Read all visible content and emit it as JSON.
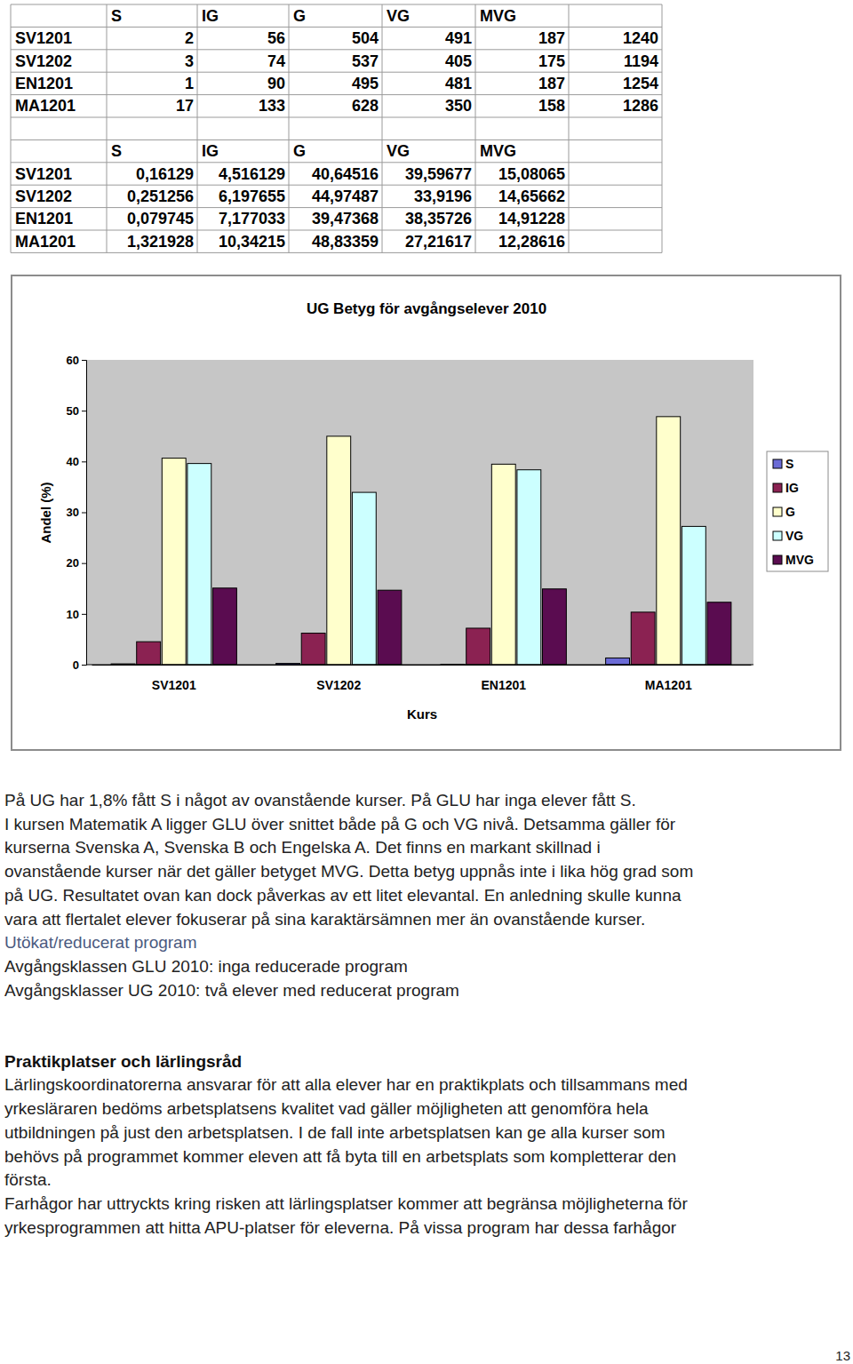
{
  "tables": [
    {
      "header": [
        "S",
        "IG",
        "G",
        "VG",
        "MVG"
      ],
      "rows": [
        {
          "label": "SV1201",
          "cells": [
            2,
            56,
            504,
            491,
            187,
            1240
          ]
        },
        {
          "label": "SV1202",
          "cells": [
            3,
            74,
            537,
            405,
            175,
            1194
          ]
        },
        {
          "label": "EN1201",
          "cells": [
            1,
            90,
            495,
            481,
            187,
            1254
          ]
        },
        {
          "label": "MA1201",
          "cells": [
            17,
            133,
            628,
            350,
            158,
            1286
          ]
        }
      ]
    },
    {
      "header": [
        "S",
        "IG",
        "G",
        "VG",
        "MVG"
      ],
      "rows": [
        {
          "label": "SV1201",
          "cells": [
            "0,16129",
            "4,516129",
            "40,64516",
            "39,59677",
            "15,08065"
          ]
        },
        {
          "label": "SV1202",
          "cells": [
            "0,251256",
            "6,197655",
            "44,97487",
            "33,9196",
            "14,65662"
          ]
        },
        {
          "label": "EN1201",
          "cells": [
            "0,079745",
            "7,177033",
            "39,47368",
            "38,35726",
            "14,91228"
          ]
        },
        {
          "label": "MA1201",
          "cells": [
            "1,321928",
            "10,34215",
            "48,83359",
            "27,21617",
            "12,28616"
          ]
        }
      ]
    }
  ],
  "chart_data": {
    "type": "bar",
    "title": "UG Betyg för avgångselever 2010",
    "x_label": "Kurs",
    "y_label": "Andel (%)",
    "categories": [
      "SV1201",
      "SV1202",
      "EN1201",
      "MA1201"
    ],
    "series": [
      {
        "name": "S",
        "color": "#6b6bd6",
        "values": [
          0.16,
          0.25,
          0.08,
          1.32
        ]
      },
      {
        "name": "IG",
        "color": "#8b2252",
        "values": [
          4.52,
          6.2,
          7.18,
          10.34
        ]
      },
      {
        "name": "G",
        "color": "#ffffcc",
        "values": [
          40.65,
          44.97,
          39.47,
          48.83
        ]
      },
      {
        "name": "VG",
        "color": "#ccffff",
        "values": [
          39.6,
          33.92,
          38.36,
          27.22
        ]
      },
      {
        "name": "MVG",
        "color": "#5a0c50",
        "values": [
          15.08,
          14.66,
          14.91,
          12.29
        ]
      }
    ],
    "ylim": [
      0,
      60
    ],
    "yticks": [
      0,
      10,
      20,
      30,
      40,
      50,
      60
    ],
    "grid": false,
    "legend": "right"
  },
  "sections": [
    {
      "lines": [
        "På UG har 1,8% fått S i något av ovanstående kurser. På GLU har inga elever fått S."
      ]
    },
    {
      "lines": [
        "I kursen Matematik A ligger GLU över snittet både på G och VG nivå. Detsamma gäller för",
        "kurserna Svenska A, Svenska B och Engelska A. Det finns en markant skillnad i",
        "ovanstående kurser när det gäller betyget MVG. Detta betyg uppnås inte i lika hög grad som",
        "på UG. Resultatet ovan kan dock påverkas av ett litet elevantal. En anledning skulle kunna",
        "vara att flertalet elever fokuserar på sina karaktärsämnen mer än ovanstående kurser."
      ]
    },
    {
      "heading": "Utökat/reducerat program",
      "heading_style": "plain",
      "lines": [
        "Avgångsklassen GLU 2010: inga reducerade program",
        "Avgångsklasser UG 2010: två elever med reducerat program"
      ]
    },
    {
      "heading": "Praktikplatser och lärlingsråd",
      "heading_style": "bold",
      "lines": [
        "Lärlingskoordinatorerna ansvarar för att alla elever har en praktikplats och tillsammans med",
        "yrkesläraren bedöms arbetsplatsens kvalitet vad gäller möjligheten att genomföra hela",
        "utbildningen på just den arbetsplatsen. I de fall inte arbetsplatsen kan ge alla kurser som",
        "behövs på programmet kommer eleven att få byta till en arbetsplats som kompletterar den",
        "första."
      ]
    },
    {
      "lines": [
        "Farhågor har uttryckts kring risken att lärlingsplatser kommer att begränsa möjligheterna för",
        "yrkesprogrammen att hitta APU-platser för eleverna. På vissa program har dessa farhågor"
      ]
    }
  ],
  "page_number": 13
}
